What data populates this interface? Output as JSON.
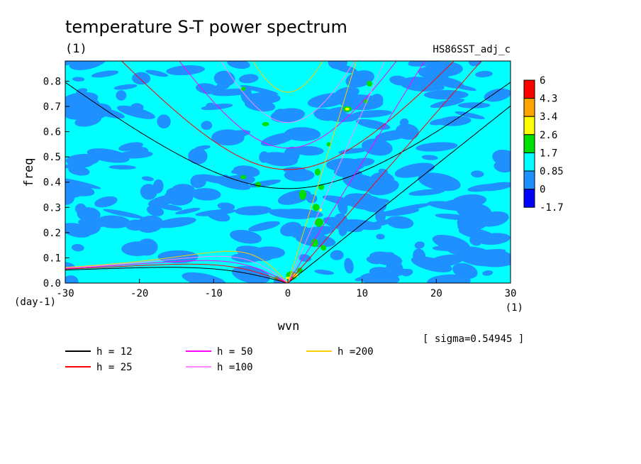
{
  "chart_data": {
    "type": "heatmap",
    "title": "temperature S-T power spectrum",
    "units_label": "(1)",
    "dataset_label": "HS86SST_adj_c",
    "xlabel": "wvn",
    "ylabel": "freq",
    "x_unit": "(1)",
    "y_unit": "(day-1)",
    "xlim": [
      -30,
      30
    ],
    "ylim": [
      0,
      0.88
    ],
    "x_ticks": [
      -30,
      -20,
      -10,
      0,
      10,
      20,
      30
    ],
    "y_ticks": [
      0.0,
      0.1,
      0.2,
      0.3,
      0.4,
      0.5,
      0.6,
      0.7,
      0.8
    ],
    "sigma_text": "[ sigma=0.54945 ]",
    "colorbar": {
      "levels": [
        "6",
        "4.3",
        "3.4",
        "2.6",
        "1.7",
        "0.85",
        "0",
        "-1.7"
      ],
      "colors": [
        "#ff0000",
        "#ffa500",
        "#ffff00",
        "#00e000",
        "#00ffff",
        "#1e90ff",
        "#0000ff"
      ]
    },
    "dominant_fill": "#00ffff",
    "dispersion_curves": [
      {
        "label": "h = 12",
        "color": "#000000"
      },
      {
        "label": "h = 25",
        "color": "#ff0000"
      },
      {
        "label": "h = 50",
        "color": "#ff00ff"
      },
      {
        "label": "h =100",
        "color": "#ff88ff"
      },
      {
        "label": "h =200",
        "color": "#ffcc00"
      }
    ]
  }
}
